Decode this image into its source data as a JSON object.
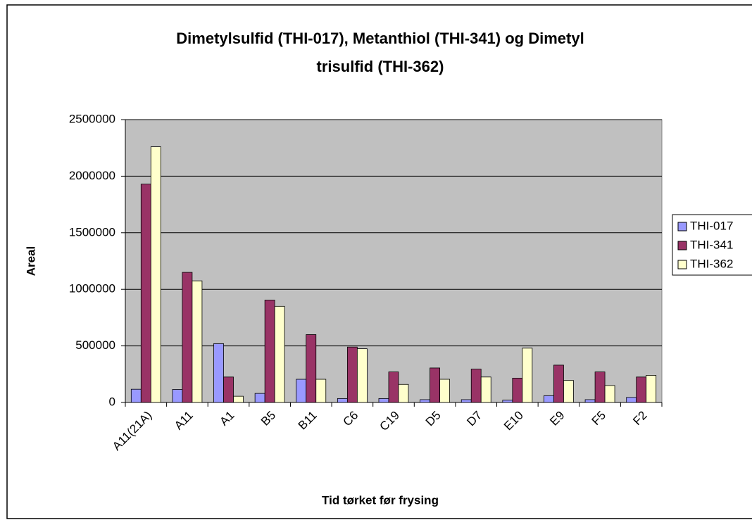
{
  "chart_data": {
    "type": "bar",
    "title": "Dimetylsulfid (THI-017), Metanthiol (THI-341) og Dimetyl trisulfid (THI-362)",
    "title_lines": [
      "Dimetylsulfid (THI-017), Metanthiol (THI-341) og Dimetyl",
      "trisulfid (THI-362)"
    ],
    "x_label": "Tid tørket før frysing",
    "y_label": "Areal",
    "categories": [
      "A11(21A)",
      "A11",
      "A1",
      "B5",
      "B11",
      "C6",
      "C19",
      "D5",
      "D7",
      "E10",
      "E9",
      "F5",
      "F2"
    ],
    "series": [
      {
        "name": "THI-017",
        "color": "#9999ff",
        "values": [
          117000,
          115000,
          520000,
          80000,
          205000,
          35000,
          35000,
          25000,
          25000,
          20000,
          60000,
          25000,
          45000
        ]
      },
      {
        "name": "THI-341",
        "color": "#993366",
        "values": [
          1930000,
          1150000,
          225000,
          905000,
          600000,
          490000,
          270000,
          305000,
          295000,
          215000,
          330000,
          270000,
          225000
        ]
      },
      {
        "name": "THI-362",
        "color": "#ffffcc",
        "values": [
          2260000,
          1075000,
          55000,
          850000,
          205000,
          475000,
          160000,
          205000,
          225000,
          480000,
          195000,
          150000,
          240000
        ]
      }
    ],
    "ylim": [
      0,
      2500000
    ],
    "yticks": [
      0,
      500000,
      1000000,
      1500000,
      2000000,
      2500000
    ],
    "grid": true,
    "legend": "right"
  }
}
